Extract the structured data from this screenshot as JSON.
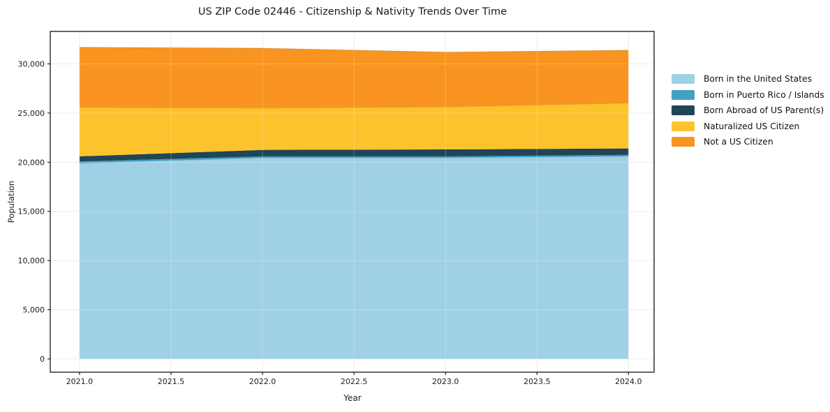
{
  "figure": {
    "title": "US ZIP Code 02446 - Citizenship & Nativity Trends Over Time",
    "xlabel": "Year",
    "ylabel": "Population"
  },
  "chart_data": {
    "type": "area",
    "stacked": true,
    "title": "US ZIP Code 02446 - Citizenship & Nativity Trends Over Time",
    "xlabel": "Year",
    "ylabel": "Population",
    "x": [
      2021,
      2022,
      2023,
      2024
    ],
    "series": [
      {
        "name": "Born in the United States",
        "color": "#9fd0e6",
        "values": [
          19900,
          20450,
          20450,
          20600
        ]
      },
      {
        "name": "Born in Puerto Rico / Islands",
        "color": "#41a0c3",
        "values": [
          180,
          150,
          150,
          150
        ]
      },
      {
        "name": "Born Abroad of US Parent(s)",
        "color": "#1f4557",
        "values": [
          520,
          650,
          700,
          650
        ]
      },
      {
        "name": "Naturalized US Citizen",
        "color": "#fdc32d",
        "values": [
          4950,
          4250,
          4300,
          4600
        ]
      },
      {
        "name": "Not a US Citizen",
        "color": "#f8941f",
        "values": [
          6150,
          6100,
          5600,
          5400
        ]
      }
    ],
    "totals": [
      31700,
      31600,
      31200,
      31400
    ],
    "xlim": [
      2020.84,
      2024.14
    ],
    "ylim": [
      -1350,
      33300
    ],
    "xticks": {
      "values": [
        2021.0,
        2021.5,
        2022.0,
        2022.5,
        2023.0,
        2023.5,
        2024.0
      ],
      "labels": [
        "2021.0",
        "2021.5",
        "2022.0",
        "2022.5",
        "2023.0",
        "2023.5",
        "2024.0"
      ]
    },
    "yticks": {
      "values": [
        0,
        5000,
        10000,
        15000,
        20000,
        25000,
        30000
      ],
      "labels": [
        "0",
        "5,000",
        "10,000",
        "15,000",
        "20,000",
        "25,000",
        "30,000"
      ]
    },
    "grid": true,
    "legend_position": "right-outside"
  },
  "colors": {
    "spine": "#000000",
    "grid": "#e8e8e8",
    "tick_text": "#1a1a1a",
    "background": "#ffffff"
  }
}
